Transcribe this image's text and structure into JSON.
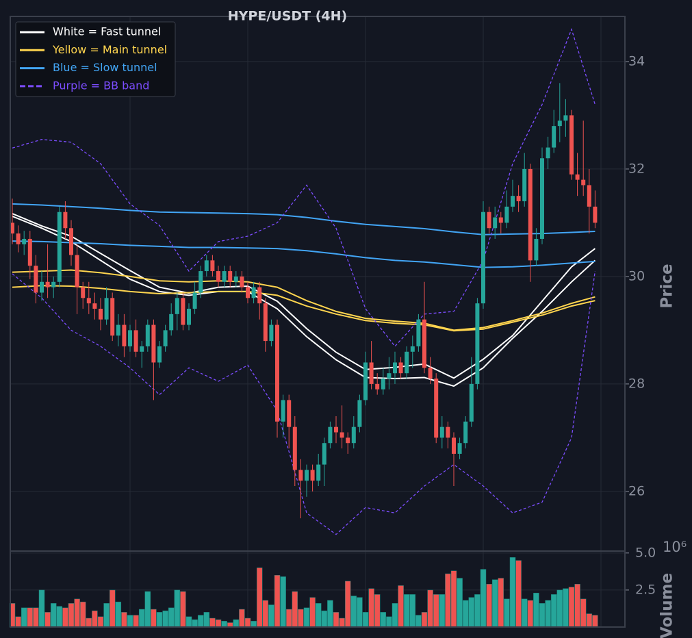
{
  "chart_data": {
    "type": "candlestick",
    "title": "HYPE/USDT (4H)",
    "ylabel": "Price",
    "volume_label": "Volume",
    "volume_offset": "10⁶",
    "ylim": [
      24.89,
      34.84
    ],
    "yticks": [
      26,
      28,
      30,
      32,
      34
    ],
    "volume_ylim": [
      0,
      5.13
    ],
    "volume_yticks": [
      {
        "value": 2.5,
        "label": "2.5"
      },
      {
        "value": 5,
        "label": "5.0"
      }
    ],
    "xticks": [
      20,
      40,
      60,
      80,
      100
    ],
    "grid": true,
    "up_color": "#26a69a",
    "down_color": "#ef5350",
    "legend": "upper left",
    "candles": [
      [
        31.0,
        31.45,
        30.6,
        30.8
      ],
      [
        30.8,
        30.95,
        30.45,
        30.6
      ],
      [
        30.6,
        30.85,
        30.4,
        30.7
      ],
      [
        30.7,
        30.85,
        29.95,
        30.2
      ],
      [
        30.2,
        30.4,
        29.5,
        29.7
      ],
      [
        29.7,
        30.1,
        29.55,
        29.9
      ],
      [
        29.9,
        30.6,
        29.6,
        29.8
      ],
      [
        29.8,
        30.0,
        29.6,
        29.9
      ],
      [
        29.9,
        31.3,
        29.8,
        31.2
      ],
      [
        31.2,
        31.4,
        30.7,
        30.9
      ],
      [
        30.9,
        31.05,
        30.2,
        30.4
      ],
      [
        30.4,
        30.6,
        29.3,
        29.8
      ],
      [
        29.8,
        29.9,
        29.4,
        29.6
      ],
      [
        29.6,
        29.9,
        29.3,
        29.5
      ],
      [
        29.5,
        29.7,
        29.2,
        29.4
      ],
      [
        29.4,
        29.6,
        29.0,
        29.2
      ],
      [
        29.2,
        29.8,
        29.1,
        29.6
      ],
      [
        29.6,
        29.7,
        28.8,
        28.9
      ],
      [
        28.9,
        29.3,
        28.7,
        29.1
      ],
      [
        29.1,
        29.3,
        28.5,
        28.7
      ],
      [
        28.7,
        29.1,
        28.6,
        29.0
      ],
      [
        29.0,
        29.2,
        28.5,
        28.6
      ],
      [
        28.6,
        28.8,
        28.3,
        28.7
      ],
      [
        28.7,
        29.2,
        28.6,
        29.1
      ],
      [
        29.1,
        29.2,
        27.7,
        28.4
      ],
      [
        28.4,
        28.8,
        28.3,
        28.7
      ],
      [
        28.7,
        29.1,
        28.6,
        29.0
      ],
      [
        29.0,
        29.5,
        28.9,
        29.3
      ],
      [
        29.3,
        29.7,
        29.0,
        29.6
      ],
      [
        29.6,
        29.7,
        29.0,
        29.1
      ],
      [
        29.1,
        29.5,
        29.0,
        29.4
      ],
      [
        29.4,
        29.9,
        29.3,
        29.7
      ],
      [
        29.7,
        30.2,
        29.6,
        30.1
      ],
      [
        30.1,
        30.4,
        30.0,
        30.3
      ],
      [
        30.3,
        30.4,
        30.0,
        30.1
      ],
      [
        30.1,
        30.2,
        29.8,
        29.9
      ],
      [
        29.9,
        30.2,
        29.8,
        30.1
      ],
      [
        30.1,
        30.2,
        29.8,
        29.9
      ],
      [
        29.9,
        30.1,
        29.8,
        30.0
      ],
      [
        30.0,
        30.1,
        29.7,
        29.8
      ],
      [
        29.8,
        29.9,
        29.5,
        29.6
      ],
      [
        29.6,
        29.9,
        29.5,
        29.8
      ],
      [
        29.8,
        29.9,
        29.2,
        29.5
      ],
      [
        29.5,
        29.6,
        28.6,
        28.8
      ],
      [
        28.8,
        29.2,
        28.7,
        29.1
      ],
      [
        29.1,
        29.2,
        27.0,
        27.3
      ],
      [
        27.3,
        27.8,
        27.0,
        27.7
      ],
      [
        27.7,
        27.8,
        26.8,
        27.2
      ],
      [
        27.2,
        27.4,
        26.1,
        26.4
      ],
      [
        26.4,
        26.6,
        25.5,
        26.2
      ],
      [
        26.2,
        26.5,
        25.9,
        26.4
      ],
      [
        26.4,
        26.5,
        26.0,
        26.2
      ],
      [
        26.2,
        26.7,
        26.1,
        26.5
      ],
      [
        26.5,
        27.0,
        26.1,
        26.9
      ],
      [
        26.9,
        27.3,
        26.8,
        27.2
      ],
      [
        27.2,
        27.4,
        26.9,
        27.1
      ],
      [
        27.1,
        27.6,
        26.8,
        27.0
      ],
      [
        27.0,
        27.1,
        26.7,
        26.9
      ],
      [
        26.9,
        27.4,
        26.8,
        27.2
      ],
      [
        27.2,
        27.8,
        27.1,
        27.7
      ],
      [
        27.7,
        28.6,
        27.6,
        28.4
      ],
      [
        28.4,
        28.8,
        27.9,
        28.0
      ],
      [
        28.0,
        28.2,
        27.8,
        27.9
      ],
      [
        27.9,
        28.3,
        27.8,
        28.1
      ],
      [
        28.1,
        28.5,
        27.9,
        28.2
      ],
      [
        28.2,
        28.6,
        28.0,
        28.4
      ],
      [
        28.4,
        28.5,
        28.1,
        28.2
      ],
      [
        28.2,
        28.7,
        28.1,
        28.6
      ],
      [
        28.6,
        28.9,
        28.3,
        28.7
      ],
      [
        28.7,
        29.3,
        28.6,
        29.2
      ],
      [
        29.2,
        29.9,
        28.2,
        28.3
      ],
      [
        28.3,
        28.5,
        28.0,
        28.1
      ],
      [
        28.1,
        28.2,
        26.9,
        27.0
      ],
      [
        27.0,
        27.4,
        26.8,
        27.2
      ],
      [
        27.2,
        27.3,
        26.8,
        27.0
      ],
      [
        27.0,
        27.1,
        26.1,
        26.7
      ],
      [
        26.7,
        27.0,
        26.6,
        26.9
      ],
      [
        26.9,
        27.4,
        26.8,
        27.3
      ],
      [
        27.3,
        28.5,
        27.2,
        28.0
      ],
      [
        28.0,
        29.6,
        27.9,
        29.5
      ],
      [
        29.5,
        31.4,
        29.4,
        31.2
      ],
      [
        31.2,
        31.3,
        30.8,
        30.9
      ],
      [
        30.9,
        31.3,
        30.7,
        31.1
      ],
      [
        31.1,
        31.2,
        30.8,
        31.0
      ],
      [
        31.0,
        31.6,
        30.9,
        31.3
      ],
      [
        31.3,
        31.8,
        31.2,
        31.5
      ],
      [
        31.5,
        31.7,
        31.2,
        31.4
      ],
      [
        31.4,
        32.3,
        31.3,
        32.0
      ],
      [
        32.0,
        32.1,
        29.9,
        30.3
      ],
      [
        30.3,
        30.9,
        30.2,
        30.7
      ],
      [
        30.7,
        32.4,
        30.6,
        32.2
      ],
      [
        32.2,
        32.6,
        32.0,
        32.4
      ],
      [
        32.4,
        33.1,
        32.3,
        32.8
      ],
      [
        32.8,
        33.6,
        32.5,
        32.9
      ],
      [
        32.9,
        33.3,
        32.6,
        33.0
      ],
      [
        33.0,
        33.1,
        31.8,
        31.9
      ],
      [
        31.9,
        32.3,
        31.5,
        31.8
      ],
      [
        31.8,
        32.9,
        31.5,
        31.7
      ],
      [
        31.7,
        32.0,
        30.8,
        31.3
      ],
      [
        31.3,
        31.6,
        30.9,
        31.0
      ]
    ],
    "volumes": [
      1.6,
      0.7,
      1.3,
      1.3,
      1.3,
      2.5,
      1.0,
      1.6,
      1.4,
      1.3,
      1.6,
      1.9,
      1.7,
      0.6,
      1.1,
      0.7,
      1.6,
      2.5,
      1.7,
      1.0,
      0.8,
      0.8,
      1.2,
      2.4,
      1.2,
      1.0,
      1.1,
      1.3,
      2.5,
      2.4,
      0.7,
      0.5,
      0.8,
      1.0,
      0.6,
      0.5,
      0.4,
      0.3,
      0.5,
      1.2,
      0.6,
      0.4,
      4.0,
      1.8,
      1.5,
      3.5,
      3.4,
      1.2,
      2.4,
      1.2,
      1.3,
      2.0,
      1.6,
      1.1,
      1.8,
      1.0,
      0.6,
      3.1,
      2.1,
      2.0,
      1.0,
      2.6,
      2.2,
      1.0,
      0.7,
      1.6,
      2.8,
      2.2,
      2.2,
      0.8,
      1.0,
      2.5,
      2.2,
      2.2,
      3.6,
      3.8,
      3.3,
      1.8,
      2.0,
      2.2,
      3.9,
      2.9,
      3.2,
      3.3,
      1.9,
      4.7,
      4.5,
      1.9,
      1.8,
      2.3,
      1.6,
      1.8,
      2.2,
      2.5,
      2.6,
      2.7,
      2.9,
      1.9,
      0.9,
      0.8
    ],
    "line_x": [
      0,
      5,
      10,
      15,
      20,
      25,
      30,
      35,
      40,
      45,
      50,
      55,
      60,
      65,
      70,
      75,
      80,
      85,
      90,
      95,
      99
    ],
    "series": [
      {
        "name": "White = Fast tunnel",
        "color": "#ffffff",
        "style": "solid",
        "values": [
          [
            31.17,
            30.94,
            30.75,
            30.43,
            30.11,
            29.8,
            29.69,
            29.8,
            29.82,
            29.54,
            29.03,
            28.59,
            28.27,
            28.31,
            28.37,
            28.11,
            28.46,
            28.9,
            29.54,
            30.18,
            30.52
          ],
          [
            31.12,
            30.9,
            30.65,
            30.3,
            29.95,
            29.72,
            29.65,
            29.72,
            29.72,
            29.4,
            28.88,
            28.45,
            28.12,
            28.1,
            28.12,
            27.96,
            28.3,
            28.85,
            29.35,
            29.9,
            30.3
          ]
        ]
      },
      {
        "name": "Yellow = Main tunnel",
        "color": "#ffd54f",
        "style": "solid",
        "values": [
          [
            30.08,
            30.1,
            30.12,
            30.07,
            30.0,
            29.92,
            29.9,
            29.92,
            29.9,
            29.8,
            29.55,
            29.35,
            29.22,
            29.17,
            29.13,
            29.0,
            29.05,
            29.18,
            29.32,
            29.5,
            29.62
          ],
          [
            29.8,
            29.83,
            29.82,
            29.78,
            29.72,
            29.68,
            29.7,
            29.72,
            29.72,
            29.65,
            29.45,
            29.3,
            29.18,
            29.13,
            29.1,
            28.99,
            29.02,
            29.15,
            29.28,
            29.45,
            29.55
          ]
        ]
      },
      {
        "name": "Blue = Slow tunnel",
        "color": "#42a5f5",
        "style": "solid",
        "values": [
          [
            31.35,
            31.33,
            31.3,
            31.27,
            31.23,
            31.2,
            31.19,
            31.18,
            31.17,
            31.15,
            31.1,
            31.03,
            30.97,
            30.93,
            30.89,
            30.83,
            30.78,
            30.79,
            30.8,
            30.82,
            30.84
          ],
          [
            30.66,
            30.65,
            30.63,
            30.61,
            30.58,
            30.56,
            30.54,
            30.54,
            30.53,
            30.52,
            30.48,
            30.42,
            30.35,
            30.3,
            30.27,
            30.22,
            30.17,
            30.18,
            30.21,
            30.25,
            30.28
          ]
        ]
      },
      {
        "name": "Purple = BB band",
        "color": "#7c4dff",
        "style": "dashed",
        "values": [
          [
            32.39,
            32.55,
            32.5,
            32.1,
            31.35,
            30.95,
            30.1,
            30.65,
            30.75,
            31.0,
            31.7,
            30.9,
            29.4,
            28.7,
            29.3,
            29.35,
            30.3,
            32.1,
            33.2,
            34.6,
            33.2
          ],
          [
            30.05,
            29.6,
            29.0,
            28.7,
            28.3,
            27.8,
            28.3,
            28.05,
            28.35,
            27.5,
            25.6,
            25.2,
            25.7,
            25.6,
            26.1,
            26.5,
            26.1,
            25.6,
            25.8,
            27.0,
            30.1
          ]
        ]
      }
    ]
  }
}
